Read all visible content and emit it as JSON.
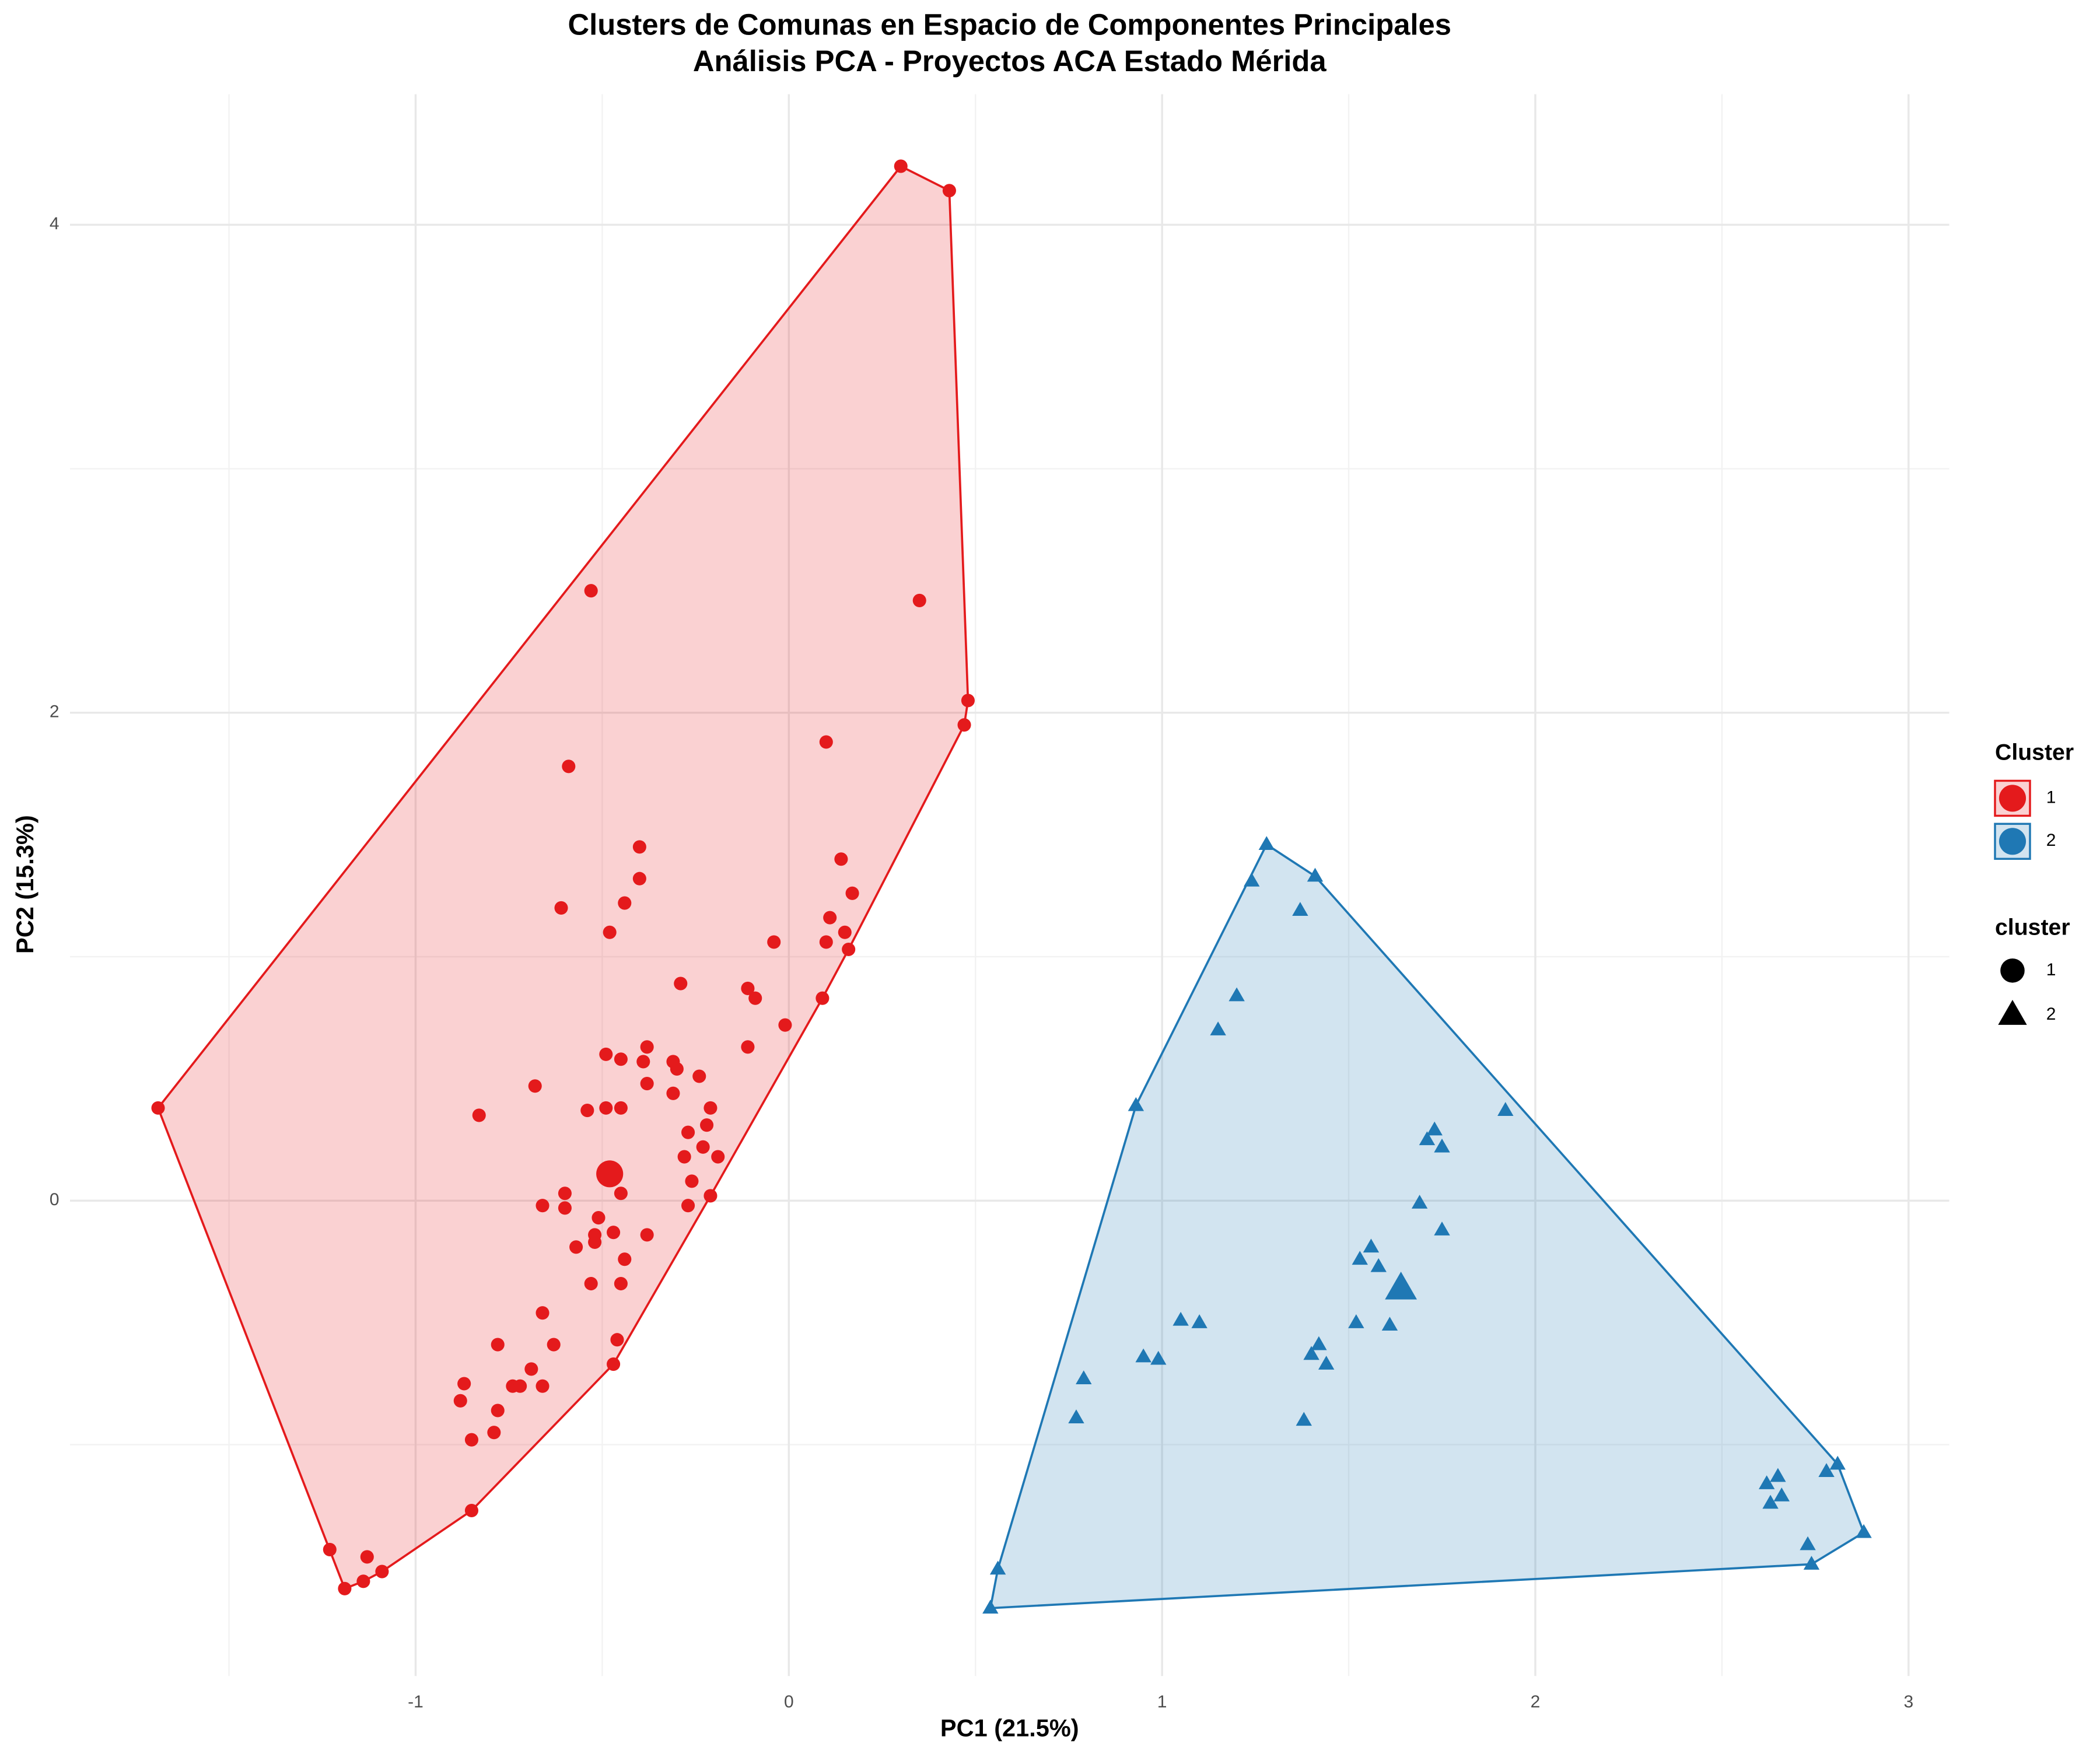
{
  "chart_data": {
    "type": "scatter",
    "title": "Clusters de Comunas en Espacio de Componentes Principales",
    "subtitle": "Análisis PCA - Proyectos ACA Estado Mérida",
    "x_label": "PC1 (21.5%)",
    "y_label": "PC2 (15.3%)",
    "xlim": [
      -1.926,
      3.109
    ],
    "ylim": [
      -1.948,
      4.535
    ],
    "xticks": [
      -1,
      0,
      1,
      2,
      3
    ],
    "yticks": [
      0,
      2,
      4
    ],
    "xminor": [
      -1.5,
      -0.5,
      0.5,
      1.5,
      2.5
    ],
    "yminor": [
      -1,
      1,
      3
    ],
    "grid": true,
    "legend_position": "right",
    "fill_legend_title": "Cluster",
    "shape_legend_title": "cluster",
    "series": [
      {
        "name": "1",
        "color": "#E41A1C",
        "shape": "circle",
        "x": [
          0.3,
          0.43,
          0.48,
          0.47,
          0.35,
          -0.53,
          0.1,
          -0.59,
          -0.4,
          0.14,
          -0.4,
          0.17,
          -0.44,
          -0.61,
          0.11,
          0.15,
          -0.48,
          -0.04,
          0.1,
          0.16,
          -0.29,
          -0.11,
          -0.09,
          0.09,
          -0.01,
          -0.11,
          -0.38,
          -0.49,
          -0.45,
          -0.39,
          -0.31,
          -0.3,
          -0.24,
          -0.68,
          -0.38,
          -0.31,
          -0.54,
          -0.83,
          -0.49,
          -0.45,
          -0.21,
          -0.27,
          -0.22,
          -0.28,
          -0.23,
          -0.19,
          -0.26,
          -0.6,
          -0.45,
          -0.21,
          -0.66,
          -0.6,
          -0.27,
          -0.51,
          -0.47,
          -0.52,
          -0.38,
          -0.52,
          -0.57,
          -0.44,
          -0.53,
          -0.45,
          -0.66,
          -0.46,
          -0.78,
          -0.63,
          -0.47,
          -0.69,
          -0.87,
          -0.74,
          -0.66,
          -0.72,
          -0.88,
          -0.78,
          -0.85,
          -0.79,
          -0.85,
          -1.23,
          -1.13,
          -1.19,
          -1.14,
          -1.09,
          -1.69
        ],
        "y": [
          4.24,
          4.14,
          2.05,
          1.95,
          2.46,
          2.5,
          1.88,
          1.78,
          1.45,
          1.4,
          1.32,
          1.26,
          1.22,
          1.2,
          1.16,
          1.1,
          1.1,
          1.06,
          1.06,
          1.03,
          0.89,
          0.87,
          0.83,
          0.83,
          0.72,
          0.63,
          0.63,
          0.6,
          0.58,
          0.57,
          0.57,
          0.54,
          0.51,
          0.47,
          0.48,
          0.44,
          0.37,
          0.35,
          0.38,
          0.38,
          0.38,
          0.28,
          0.31,
          0.18,
          0.22,
          0.18,
          0.08,
          0.03,
          0.03,
          0.02,
          -0.02,
          -0.03,
          -0.02,
          -0.07,
          -0.13,
          -0.14,
          -0.14,
          -0.17,
          -0.19,
          -0.24,
          -0.34,
          -0.34,
          -0.46,
          -0.57,
          -0.59,
          -0.59,
          -0.67,
          -0.69,
          -0.75,
          -0.76,
          -0.76,
          -0.76,
          -0.82,
          -0.86,
          -0.98,
          -0.95,
          -1.27,
          -1.43,
          -1.46,
          -1.59,
          -1.56,
          -1.52,
          0.38
        ],
        "centroid": {
          "x": -0.48,
          "y": 0.11
        }
      },
      {
        "name": "2",
        "color": "#1F78B4",
        "shape": "triangle",
        "x": [
          1.28,
          1.41,
          1.24,
          1.37,
          1.2,
          1.15,
          0.93,
          1.92,
          1.73,
          1.71,
          1.75,
          1.69,
          1.75,
          1.56,
          1.53,
          1.58,
          1.05,
          1.1,
          1.52,
          1.61,
          1.42,
          1.4,
          0.95,
          0.99,
          1.44,
          0.79,
          0.77,
          1.38,
          2.81,
          2.78,
          2.65,
          2.62,
          2.66,
          2.63,
          2.88,
          2.73,
          2.74,
          0.56,
          0.54
        ],
        "y": [
          1.46,
          1.33,
          1.31,
          1.19,
          0.84,
          0.7,
          0.39,
          0.37,
          0.29,
          0.25,
          0.22,
          -0.01,
          -0.12,
          -0.19,
          -0.24,
          -0.27,
          -0.49,
          -0.5,
          -0.5,
          -0.51,
          -0.59,
          -0.63,
          -0.64,
          -0.65,
          -0.67,
          -0.73,
          -0.89,
          -0.9,
          -1.08,
          -1.11,
          -1.13,
          -1.16,
          -1.21,
          -1.24,
          -1.36,
          -1.41,
          -1.49,
          -1.51,
          -1.67
        ],
        "centroid": {
          "x": 1.64,
          "y": -0.36
        }
      }
    ]
  }
}
